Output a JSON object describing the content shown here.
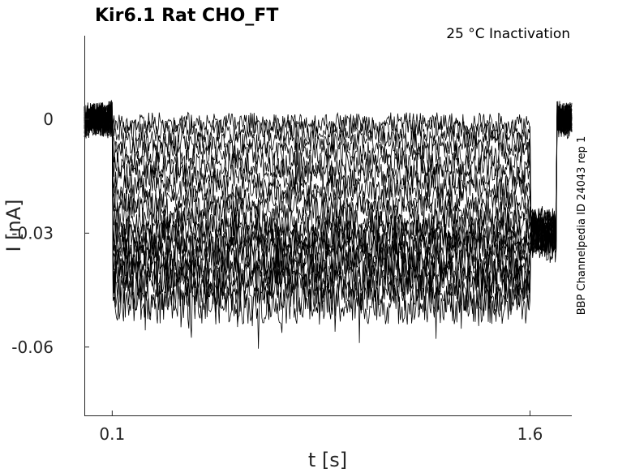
{
  "chart_data": {
    "type": "line",
    "title": "Kir6.1  Rat  CHO_FT",
    "subtitle": "25 °C  Inactivation",
    "side_label": "BBP Channelpedia ID 24043 rep 1",
    "xlabel": "t [s]",
    "ylabel": "I [nA]",
    "xlim": [
      0.0,
      1.75
    ],
    "ylim": [
      -0.078,
      0.022
    ],
    "x_ticks": [
      0.1,
      1.6
    ],
    "x_tick_labels": [
      "0.1",
      "1.6"
    ],
    "y_ticks": [
      0,
      -0.03,
      -0.06
    ],
    "y_tick_labels": [
      "0",
      "-0.03",
      "-0.06"
    ],
    "grid": false,
    "trace_color": "#000000",
    "protocol": {
      "baseline_end": 0.1,
      "step_end": 1.6,
      "tail_end": 1.695,
      "trace_end": 1.75
    },
    "series_summary": {
      "count": 20,
      "baseline_mean": 0.0,
      "step_means": [
        -0.001,
        -0.003,
        -0.006,
        -0.009,
        -0.012,
        -0.015,
        -0.018,
        -0.021,
        -0.024,
        -0.027,
        -0.029,
        -0.031,
        -0.033,
        -0.035,
        -0.037,
        -0.039,
        -0.041,
        -0.043,
        -0.046,
        -0.049
      ],
      "tail_mean": -0.03,
      "noise_amplitude": 0.004,
      "min_value": -0.069,
      "max_value": 0.012
    }
  }
}
